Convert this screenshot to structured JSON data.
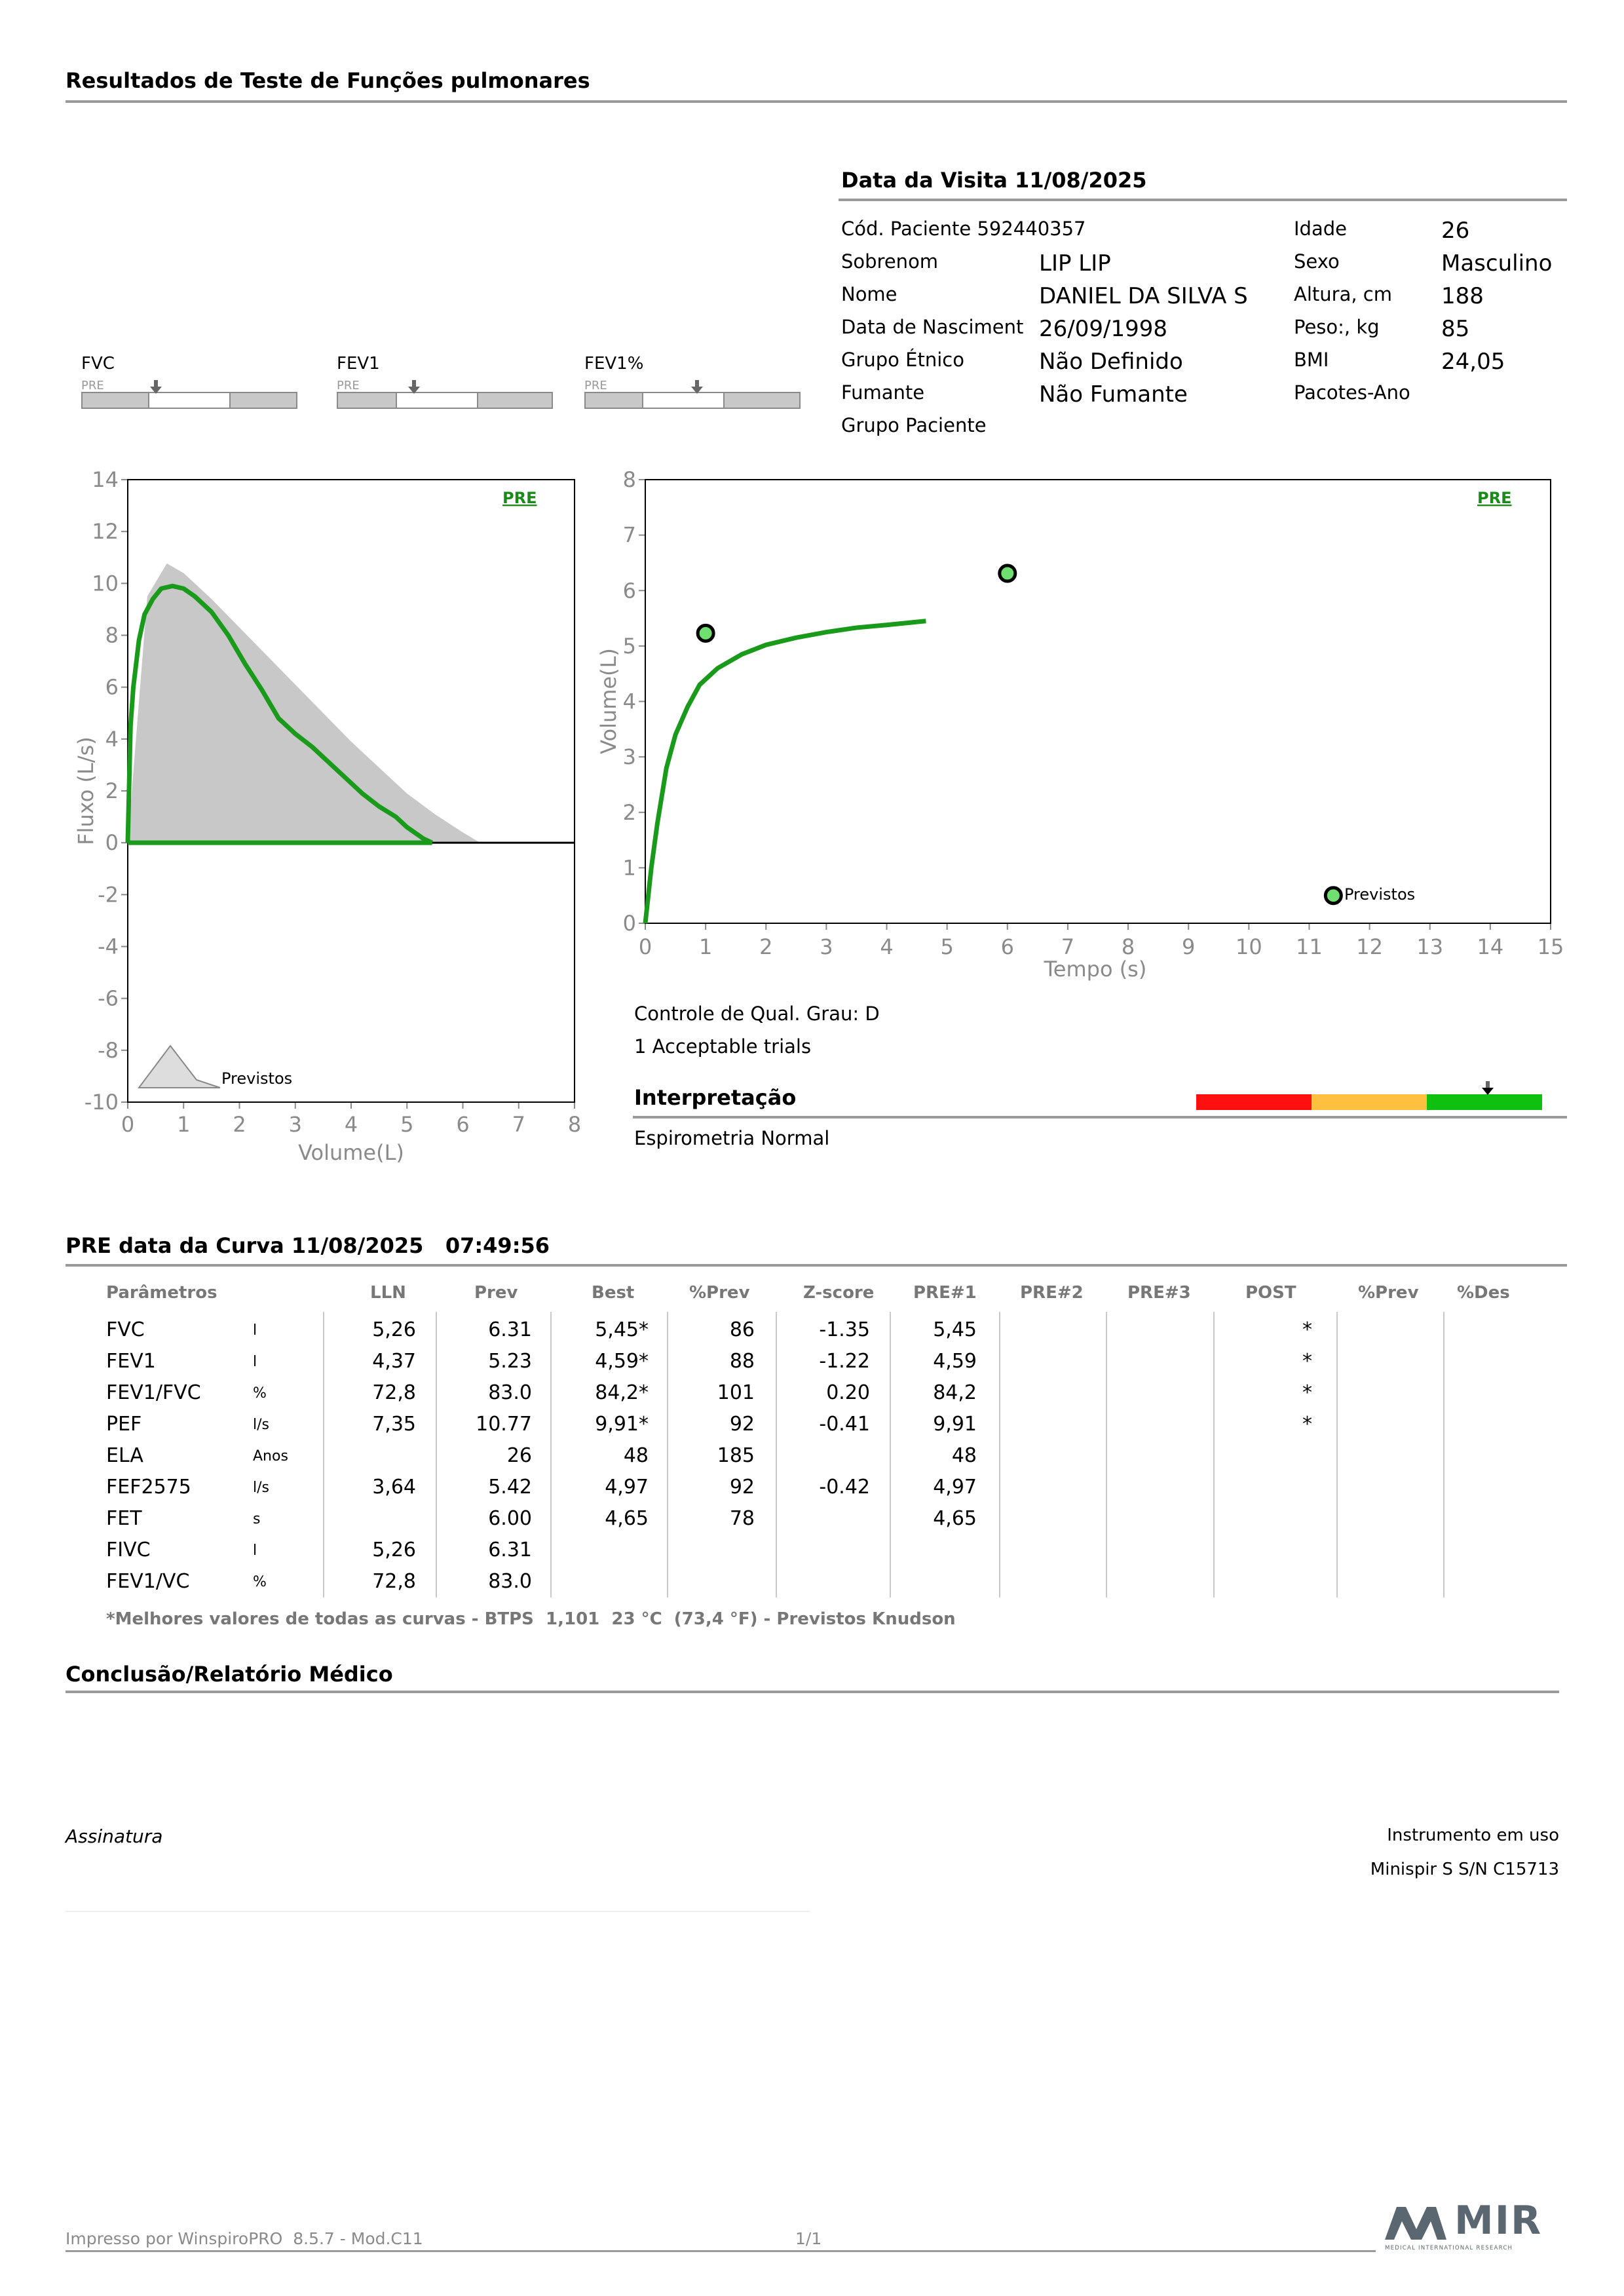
{
  "header": {
    "title": "Resultados de Teste de Funções pulmonares"
  },
  "visit": {
    "title": "Data da Visita 11/08/2025"
  },
  "patient": {
    "code_label": "Cód. Paciente 592440357",
    "surname_label": "Sobrenom",
    "surname": "LIP LIP",
    "name_label": "Nome",
    "name": "DANIEL DA SILVA S",
    "dob_label": "Data de Nasciment",
    "dob": "26/09/1998",
    "ethnic_label": "Grupo Étnico",
    "ethnic": "Não Definido",
    "smoker_label": "Fumante",
    "smoker": "Não Fumante",
    "group_label": "Grupo Paciente",
    "age_label": "Idade",
    "age": "26",
    "sex_label": "Sexo",
    "sex": "Masculino",
    "height_label": "Altura, cm",
    "height": "188",
    "weight_label": "Peso:, kg",
    "weight": "85",
    "bmi_label": "BMI",
    "bmi": "24,05",
    "packs_label": "Pacotes-Ano"
  },
  "gauges": [
    {
      "label": "FVC",
      "pre": "PRE"
    },
    {
      "label": "FEV1",
      "pre": "PRE"
    },
    {
      "label": "FEV1%",
      "pre": "PRE"
    }
  ],
  "chart_data": [
    {
      "type": "line",
      "title": "",
      "xlabel": "Volume(L)",
      "ylabel": "Fluxo (L/s)",
      "xlim": [
        0,
        8
      ],
      "ylim": [
        -10,
        14
      ],
      "x_ticks": [
        "0",
        "1",
        "2",
        "3",
        "4",
        "5",
        "6",
        "7",
        "8"
      ],
      "y_ticks": [
        "14",
        "12",
        "10",
        "8",
        "6",
        "4",
        "2",
        "0",
        "-2",
        "-4",
        "-6",
        "-8",
        "-10"
      ],
      "series_label": "PRE",
      "legend_text": "Previstos",
      "series": [
        {
          "name": "PRE",
          "x": [
            0,
            0.05,
            0.1,
            0.2,
            0.3,
            0.45,
            0.6,
            0.8,
            1.0,
            1.2,
            1.5,
            1.8,
            2.1,
            2.4,
            2.7,
            3.0,
            3.3,
            3.6,
            3.9,
            4.2,
            4.5,
            4.8,
            5.0,
            5.2,
            5.3,
            5.4,
            5.45
          ],
          "y": [
            0,
            4.5,
            6.0,
            7.8,
            8.8,
            9.4,
            9.8,
            9.9,
            9.8,
            9.5,
            8.9,
            8.0,
            6.9,
            5.9,
            4.8,
            4.2,
            3.7,
            3.1,
            2.5,
            1.9,
            1.4,
            1.0,
            0.6,
            0.3,
            0.15,
            0.05,
            0
          ]
        },
        {
          "name": "Previstos",
          "x": [
            0,
            0.35,
            0.7,
            1.0,
            1.5,
            2.0,
            2.5,
            3.0,
            3.5,
            4.0,
            4.5,
            5.0,
            5.5,
            6.0,
            6.31
          ],
          "y": [
            0,
            9.5,
            10.77,
            10.4,
            9.4,
            8.3,
            7.2,
            6.1,
            5.0,
            3.9,
            2.9,
            1.9,
            1.1,
            0.4,
            0
          ]
        }
      ]
    },
    {
      "type": "line",
      "title": "",
      "xlabel": "Tempo (s)",
      "ylabel": "Volume(L)",
      "xlim": [
        0,
        15
      ],
      "ylim": [
        0,
        8
      ],
      "x_ticks": [
        "0",
        "1",
        "2",
        "3",
        "4",
        "5",
        "6",
        "7",
        "8",
        "9",
        "10",
        "11",
        "12",
        "13",
        "14",
        "15"
      ],
      "y_ticks": [
        "8",
        "7",
        "6",
        "5",
        "4",
        "3",
        "2",
        "1",
        "0"
      ],
      "series_label": "PRE",
      "legend_text": "Previstos",
      "series": [
        {
          "name": "PRE",
          "x": [
            0,
            0.1,
            0.2,
            0.35,
            0.5,
            0.7,
            0.9,
            1.2,
            1.6,
            2.0,
            2.5,
            3.0,
            3.5,
            4.0,
            4.65
          ],
          "y": [
            0,
            1.0,
            1.8,
            2.8,
            3.4,
            3.9,
            4.3,
            4.6,
            4.85,
            5.02,
            5.15,
            5.25,
            5.33,
            5.38,
            5.45
          ]
        }
      ],
      "predicted_points": [
        {
          "x": 1,
          "y": 5.23
        },
        {
          "x": 6,
          "y": 6.31
        },
        {
          "x": 11.4,
          "y": 0.5
        }
      ]
    }
  ],
  "quality": {
    "grade": "Controle de Qual. Grau: D",
    "trials": "1 Acceptable trials"
  },
  "interpretation": {
    "title": "Interpretação",
    "text": "Espirometria Normal",
    "colors": [
      "#ff1010",
      "#ffc040",
      "#10c010"
    ]
  },
  "curve": {
    "title": "PRE data da Curva 11/08/2025   07:49:56"
  },
  "table": {
    "headers": [
      "Parâmetros",
      "LLN",
      "Prev",
      "Best",
      "%Prev",
      "Z-score",
      "PRE#1",
      "PRE#2",
      "PRE#3",
      "POST",
      "%Prev",
      "%Des"
    ],
    "rows": [
      {
        "param": "FVC",
        "unit": "l",
        "lln": "5,26",
        "prev": "6.31",
        "best": "5,45*",
        "pprev": "86",
        "z": "-1.35",
        "pre1": "5,45",
        "post": "*"
      },
      {
        "param": "FEV1",
        "unit": "l",
        "lln": "4,37",
        "prev": "5.23",
        "best": "4,59*",
        "pprev": "88",
        "z": "-1.22",
        "pre1": "4,59",
        "post": "*"
      },
      {
        "param": "FEV1/FVC",
        "unit": "%",
        "lln": "72,8",
        "prev": "83.0",
        "best": "84,2*",
        "pprev": "101",
        "z": "0.20",
        "pre1": "84,2",
        "post": "*"
      },
      {
        "param": "PEF",
        "unit": "l/s",
        "lln": "7,35",
        "prev": "10.77",
        "best": "9,91*",
        "pprev": "92",
        "z": "-0.41",
        "pre1": "9,91",
        "post": "*"
      },
      {
        "param": "ELA",
        "unit": "Anos",
        "lln": "",
        "prev": "26",
        "best": "48",
        "pprev": "185",
        "z": "",
        "pre1": "48",
        "post": ""
      },
      {
        "param": "FEF2575",
        "unit": "l/s",
        "lln": "3,64",
        "prev": "5.42",
        "best": "4,97",
        "pprev": "92",
        "z": "-0.42",
        "pre1": "4,97",
        "post": ""
      },
      {
        "param": "FET",
        "unit": "s",
        "lln": "",
        "prev": "6.00",
        "best": "4,65",
        "pprev": "78",
        "z": "",
        "pre1": "4,65",
        "post": ""
      },
      {
        "param": "FIVC",
        "unit": "l",
        "lln": "5,26",
        "prev": "6.31",
        "best": "",
        "pprev": "",
        "z": "",
        "pre1": "",
        "post": ""
      },
      {
        "param": "FEV1/VC",
        "unit": "%",
        "lln": "72,8",
        "prev": "83.0",
        "best": "",
        "pprev": "",
        "z": "",
        "pre1": "",
        "post": ""
      }
    ],
    "note": "*Melhores valores de todas as curvas - BTPS  1,101  23 °C  (73,4 °F) - Previstos Knudson"
  },
  "conclusion": {
    "title": "Conclusão/Relatório Médico"
  },
  "signature": {
    "label": "Assinatura"
  },
  "instrument": {
    "label": "Instrumento em uso",
    "value": "Minispir S S/N C15713"
  },
  "footer": {
    "printed": "Impresso por WinspiroPRO  8.5.7 - Mod.C11",
    "page": "1/1",
    "brand": "MIR",
    "brand_sub": "MEDICAL INTERNATIONAL RESEARCH"
  }
}
